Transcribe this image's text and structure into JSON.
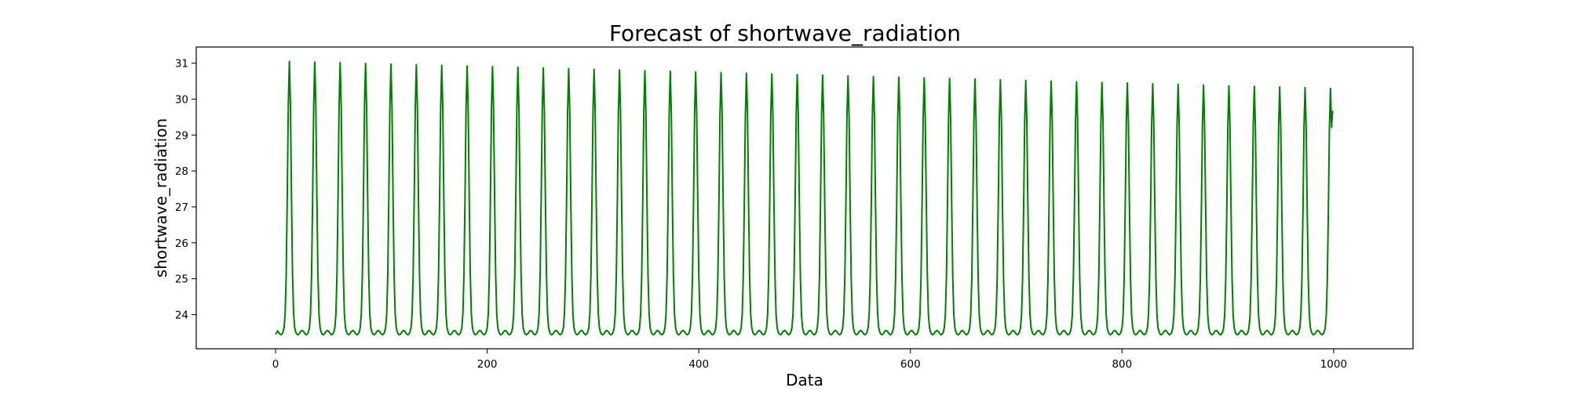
{
  "chart_data": {
    "type": "line",
    "title": "Forecast of shortwave_radiation",
    "xlabel": "Data",
    "ylabel": "shortwave_radiation",
    "xlim": [
      -75,
      1075
    ],
    "ylim": [
      23.05,
      31.45
    ],
    "xticks": [
      0,
      200,
      400,
      600,
      800,
      1000
    ],
    "yticks": [
      24,
      25,
      26,
      27,
      28,
      29,
      30,
      31
    ],
    "grid": false,
    "legend": "none",
    "color": "#008000",
    "series": [
      {
        "pattern": "periodic daily cycle",
        "x_start": 0,
        "x_end": 999,
        "period": 24,
        "first_peak_x": 13,
        "baseline": 23.5,
        "peak_start": 31.05,
        "peak_end": 30.3,
        "final_value": 29.68
      }
    ]
  }
}
